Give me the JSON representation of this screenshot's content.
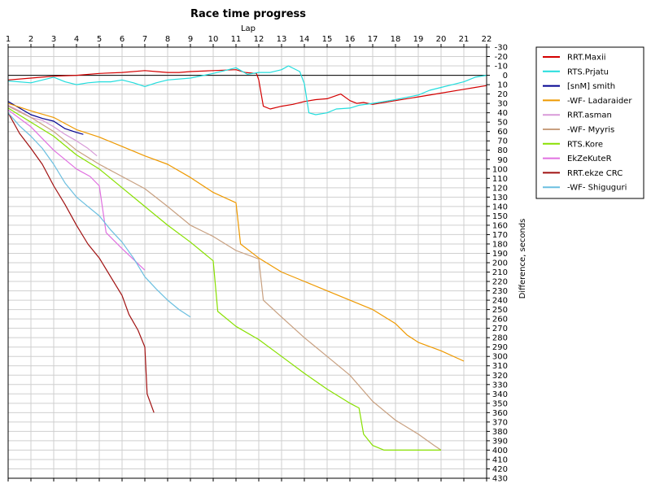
{
  "chart_data": {
    "type": "line",
    "title": "Race time progress",
    "xlabel": "Lap",
    "ylabel": "Difference, seconds",
    "x_ticks": [
      "1",
      "2",
      "3",
      "4",
      "5",
      "6",
      "7",
      "8",
      "9",
      "10",
      "11",
      "12",
      "13",
      "14",
      "15",
      "16",
      "17",
      "18",
      "19",
      "20",
      "21",
      "22"
    ],
    "y_ticks": [
      "-30",
      "-20",
      "-10",
      "0",
      "10",
      "20",
      "30",
      "40",
      "50",
      "60",
      "70",
      "80",
      "90",
      "100",
      "110",
      "120",
      "130",
      "140",
      "150",
      "160",
      "170",
      "180",
      "190",
      "200",
      "210",
      "220",
      "230",
      "240",
      "250",
      "260",
      "270",
      "280",
      "290",
      "300",
      "310",
      "320",
      "330",
      "340",
      "350",
      "360",
      "370",
      "380",
      "390",
      "400",
      "410",
      "420",
      "430"
    ],
    "xlim": [
      1,
      22
    ],
    "ylim": [
      -30,
      430
    ],
    "y_inverted": true,
    "grid": true,
    "legend_position": "right",
    "reference_line": 0,
    "series": [
      {
        "name": "RRT.Maxii",
        "color": "#d40000",
        "points": [
          [
            1,
            5
          ],
          [
            2,
            3
          ],
          [
            3,
            1
          ],
          [
            4,
            0
          ],
          [
            5,
            -2
          ],
          [
            6,
            -3
          ],
          [
            7,
            -5
          ],
          [
            7.5,
            -4
          ],
          [
            8,
            -3
          ],
          [
            8.5,
            -3
          ],
          [
            9,
            -4
          ],
          [
            10,
            -5
          ],
          [
            11,
            -6
          ],
          [
            11.4,
            -3
          ],
          [
            11.9,
            -2
          ],
          [
            12,
            5
          ],
          [
            12.2,
            33
          ],
          [
            12.5,
            36
          ],
          [
            13,
            33
          ],
          [
            13.5,
            31
          ],
          [
            14,
            28
          ],
          [
            14.5,
            26
          ],
          [
            15,
            25
          ],
          [
            15.6,
            20
          ],
          [
            16,
            27
          ],
          [
            16.3,
            30
          ],
          [
            16.6,
            29
          ],
          [
            17,
            31
          ],
          [
            18,
            27
          ],
          [
            19,
            23
          ],
          [
            20,
            19
          ],
          [
            21,
            15
          ],
          [
            21.5,
            13
          ],
          [
            22,
            11
          ]
        ]
      },
      {
        "name": "RTS.Prjatu",
        "color": "#22dddd",
        "points": [
          [
            1,
            6
          ],
          [
            2,
            8
          ],
          [
            3,
            2
          ],
          [
            3.5,
            7
          ],
          [
            4,
            10
          ],
          [
            4.5,
            8
          ],
          [
            5,
            7
          ],
          [
            5.5,
            7
          ],
          [
            6,
            5
          ],
          [
            6.5,
            8
          ],
          [
            7,
            12
          ],
          [
            7.5,
            8
          ],
          [
            8,
            5
          ],
          [
            9,
            3
          ],
          [
            10,
            -2
          ],
          [
            10.5,
            -5
          ],
          [
            11,
            -8
          ],
          [
            11.5,
            -1
          ],
          [
            12,
            -3
          ],
          [
            12.5,
            -3
          ],
          [
            13,
            -6
          ],
          [
            13.3,
            -10
          ],
          [
            13.8,
            -4
          ],
          [
            14,
            9
          ],
          [
            14.2,
            40
          ],
          [
            14.5,
            42
          ],
          [
            15,
            40
          ],
          [
            15.4,
            36
          ],
          [
            16,
            35
          ],
          [
            16.4,
            32
          ],
          [
            17,
            30
          ],
          [
            17.5,
            28
          ],
          [
            18,
            26
          ],
          [
            19,
            21
          ],
          [
            19.5,
            16
          ],
          [
            20,
            13
          ],
          [
            20.5,
            10
          ],
          [
            21,
            7
          ],
          [
            21.5,
            2
          ],
          [
            22,
            0
          ]
        ]
      },
      {
        "name": "[snM] smith",
        "color": "#000090",
        "points": [
          [
            1,
            28
          ],
          [
            1.5,
            35
          ],
          [
            2,
            42
          ],
          [
            2.5,
            46
          ],
          [
            3,
            49
          ],
          [
            3.5,
            57
          ],
          [
            4,
            61
          ],
          [
            4.3,
            63
          ]
        ]
      },
      {
        "name": "-WF- Ladaraider",
        "color": "#ee9900",
        "points": [
          [
            1,
            30
          ],
          [
            2,
            38
          ],
          [
            3,
            45
          ],
          [
            4,
            58
          ],
          [
            5,
            66
          ],
          [
            6,
            76
          ],
          [
            7,
            86
          ],
          [
            8,
            95
          ],
          [
            9,
            109
          ],
          [
            10,
            125
          ],
          [
            11,
            136
          ],
          [
            11.2,
            180
          ],
          [
            12,
            195
          ],
          [
            13,
            210
          ],
          [
            14,
            220
          ],
          [
            15,
            230
          ],
          [
            16,
            240
          ],
          [
            17,
            250
          ],
          [
            18,
            265
          ],
          [
            18.5,
            277
          ],
          [
            19,
            285
          ],
          [
            20,
            294
          ],
          [
            21,
            305
          ]
        ]
      },
      {
        "name": "RRT.asman",
        "color": "#d89ad8",
        "points": [
          [
            1,
            32
          ],
          [
            1.5,
            38
          ],
          [
            2,
            45
          ],
          [
            2.5,
            48
          ],
          [
            3,
            55
          ],
          [
            3.5,
            63
          ],
          [
            4,
            70
          ],
          [
            4.5,
            78
          ],
          [
            4.9,
            86
          ]
        ]
      },
      {
        "name": "-WF- Myyris",
        "color": "#c8a080",
        "points": [
          [
            1,
            33
          ],
          [
            2,
            45
          ],
          [
            3,
            60
          ],
          [
            4,
            80
          ],
          [
            5,
            95
          ],
          [
            6,
            108
          ],
          [
            7,
            121
          ],
          [
            8,
            140
          ],
          [
            9,
            160
          ],
          [
            10,
            172
          ],
          [
            11,
            187
          ],
          [
            12,
            196
          ],
          [
            12.2,
            240
          ],
          [
            13,
            258
          ],
          [
            14,
            280
          ],
          [
            15,
            300
          ],
          [
            16,
            320
          ],
          [
            17,
            348
          ],
          [
            18,
            368
          ],
          [
            19,
            383
          ],
          [
            19.7,
            395
          ],
          [
            20,
            400
          ]
        ]
      },
      {
        "name": "RTS.Kore",
        "color": "#88e000",
        "points": [
          [
            1,
            35
          ],
          [
            2,
            50
          ],
          [
            3,
            65
          ],
          [
            4,
            85
          ],
          [
            5,
            100
          ],
          [
            6,
            120
          ],
          [
            7,
            140
          ],
          [
            8,
            160
          ],
          [
            9,
            178
          ],
          [
            10,
            198
          ],
          [
            10.2,
            252
          ],
          [
            11,
            268
          ],
          [
            12,
            282
          ],
          [
            13,
            300
          ],
          [
            14,
            318
          ],
          [
            15,
            335
          ],
          [
            16,
            350
          ],
          [
            16.4,
            355
          ],
          [
            16.6,
            383
          ],
          [
            17,
            395
          ],
          [
            17.5,
            400
          ],
          [
            18,
            400
          ],
          [
            19,
            400
          ],
          [
            20,
            400
          ]
        ]
      },
      {
        "name": "EkZeKuteR",
        "color": "#e070e0",
        "points": [
          [
            1,
            37
          ],
          [
            2,
            55
          ],
          [
            3,
            80
          ],
          [
            4,
            100
          ],
          [
            4.6,
            108
          ],
          [
            5,
            118
          ],
          [
            5.3,
            168
          ],
          [
            6,
            185
          ],
          [
            7,
            208
          ]
        ]
      },
      {
        "name": "RRT.ekze CRC",
        "color": "#a01010",
        "points": [
          [
            1,
            40
          ],
          [
            1.5,
            62
          ],
          [
            2,
            78
          ],
          [
            2.5,
            95
          ],
          [
            3,
            118
          ],
          [
            3.5,
            138
          ],
          [
            4,
            160
          ],
          [
            4.5,
            180
          ],
          [
            5,
            195
          ],
          [
            5.5,
            215
          ],
          [
            6,
            235
          ],
          [
            6.3,
            255
          ],
          [
            6.7,
            272
          ],
          [
            7,
            290
          ],
          [
            7.1,
            340
          ],
          [
            7.4,
            360
          ]
        ]
      },
      {
        "name": "-WF- Shiguguri",
        "color": "#6bbfe0",
        "points": [
          [
            1,
            40
          ],
          [
            1.5,
            54
          ],
          [
            2,
            65
          ],
          [
            2.5,
            78
          ],
          [
            3,
            95
          ],
          [
            3.5,
            115
          ],
          [
            4,
            130
          ],
          [
            4.5,
            140
          ],
          [
            5,
            150
          ],
          [
            5.5,
            165
          ],
          [
            6,
            178
          ],
          [
            6.5,
            195
          ],
          [
            7,
            215
          ],
          [
            7.5,
            228
          ],
          [
            8,
            240
          ],
          [
            8.5,
            250
          ],
          [
            9,
            258
          ]
        ]
      }
    ]
  }
}
